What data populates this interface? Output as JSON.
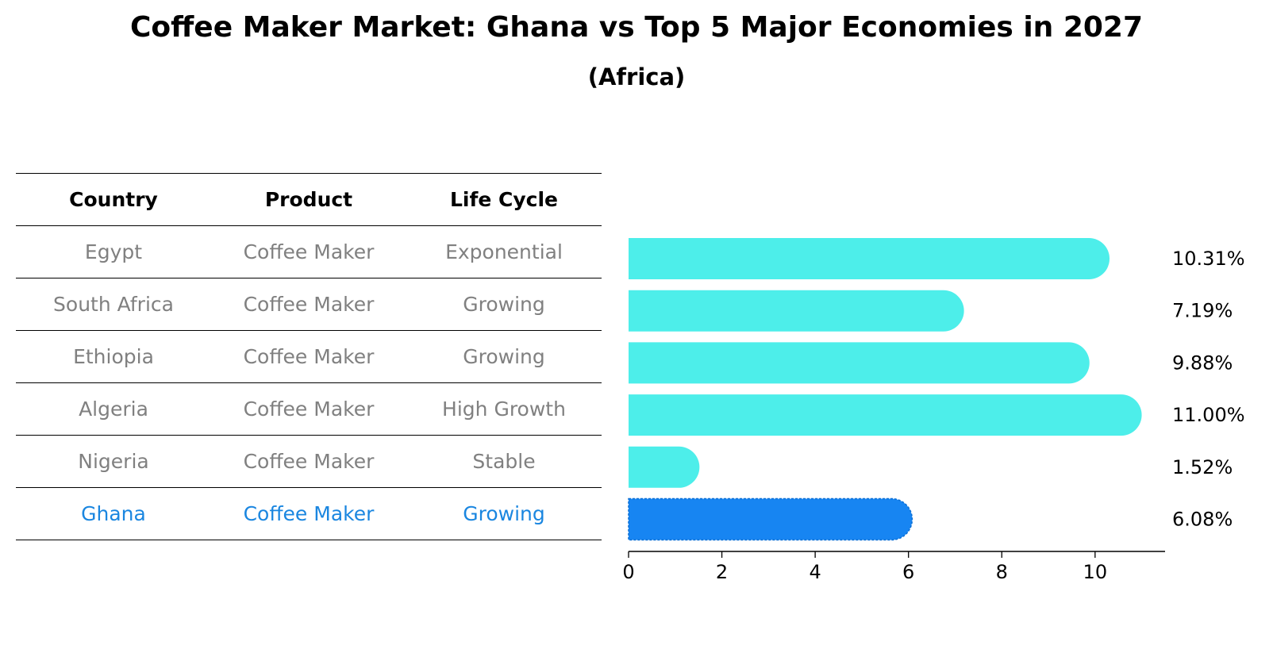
{
  "chart_data": {
    "type": "bar",
    "orientation": "horizontal",
    "title": "Coffee Maker Market: Ghana vs Top 5 Major Economies in 2027",
    "subtitle": "(Africa)",
    "table": {
      "headers": [
        "Country",
        "Product",
        "Life Cycle"
      ],
      "rows": [
        {
          "country": "Egypt",
          "product": "Coffee Maker",
          "life_cycle": "Exponential",
          "highlight": false
        },
        {
          "country": "South Africa",
          "product": "Coffee Maker",
          "life_cycle": "Growing",
          "highlight": false
        },
        {
          "country": "Ethiopia",
          "product": "Coffee Maker",
          "life_cycle": "Growing",
          "highlight": false
        },
        {
          "country": "Algeria",
          "product": "Coffee Maker",
          "life_cycle": "High Growth",
          "highlight": false
        },
        {
          "country": "Nigeria",
          "product": "Coffee Maker",
          "life_cycle": "Stable",
          "highlight": false
        },
        {
          "country": "Ghana",
          "product": "Coffee Maker",
          "life_cycle": "Growing",
          "highlight": true
        }
      ]
    },
    "categories": [
      "Egypt",
      "South Africa",
      "Ethiopia",
      "Algeria",
      "Nigeria",
      "Ghana"
    ],
    "values": [
      10.31,
      7.19,
      9.88,
      11.0,
      1.52,
      6.08
    ],
    "value_labels": [
      "10.31%",
      "7.19%",
      "9.88%",
      "11.00%",
      "1.52%",
      "6.08%"
    ],
    "highlight_category": "Ghana",
    "xlim": [
      0,
      11.5
    ],
    "xticks": [
      0,
      2,
      4,
      6,
      8,
      10
    ],
    "xlabel": "",
    "ylabel": "",
    "grid": false,
    "colors": {
      "bar": "#4deeea",
      "highlight_bar": "#1785f2",
      "table_text": "#808080",
      "highlight_text": "#1a86e0"
    }
  }
}
